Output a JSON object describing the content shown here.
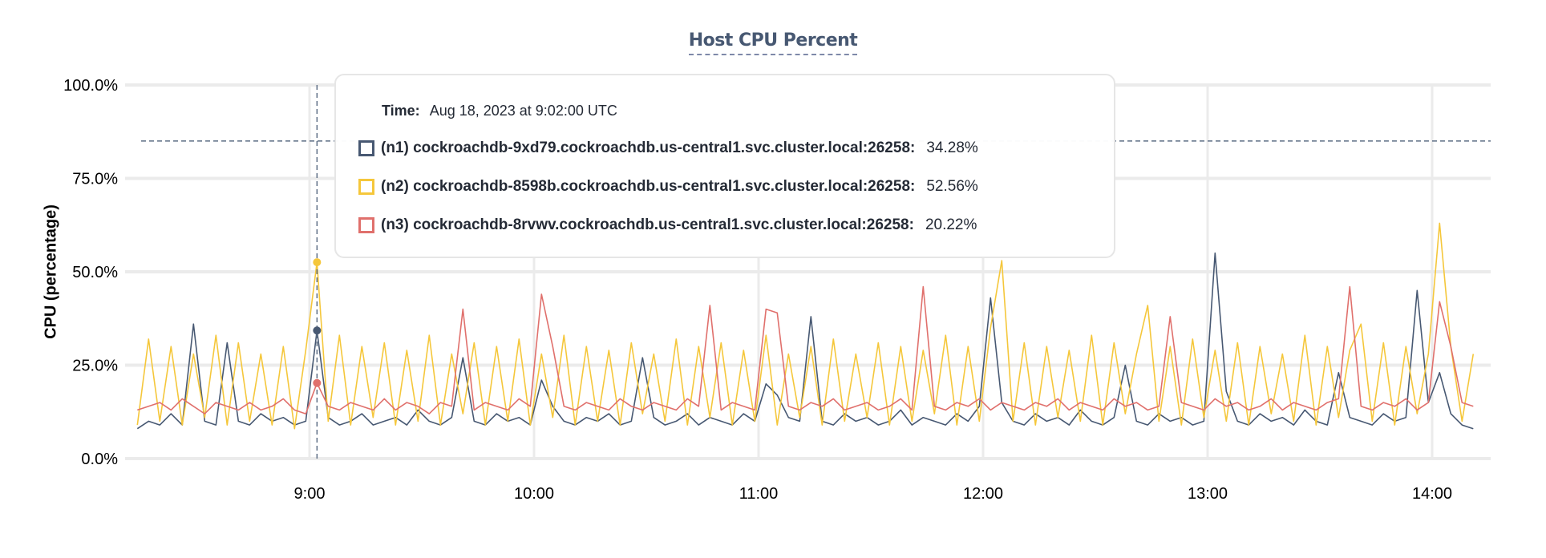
{
  "chart_data": {
    "type": "line",
    "title": "Host CPU Percent",
    "ylabel": "CPU (percentage)",
    "xlabel": "",
    "ylim": [
      0,
      100
    ],
    "yticks": [
      "0.0%",
      "25.0%",
      "50.0%",
      "75.0%",
      "100.0%"
    ],
    "ytick_values": [
      0,
      25,
      50,
      75,
      100
    ],
    "xticks": [
      "9:00",
      "10:00",
      "11:00",
      "12:00",
      "13:00",
      "14:00"
    ],
    "xlim": [
      "08:14",
      "14:11"
    ],
    "grid": true,
    "threshold_line": 85,
    "x": [
      "08:14",
      "08:17",
      "08:20",
      "08:23",
      "08:26",
      "08:29",
      "08:32",
      "08:35",
      "08:38",
      "08:41",
      "08:44",
      "08:47",
      "08:50",
      "08:53",
      "08:56",
      "08:59",
      "09:02",
      "09:05",
      "09:08",
      "09:11",
      "09:14",
      "09:17",
      "09:20",
      "09:23",
      "09:26",
      "09:29",
      "09:32",
      "09:35",
      "09:38",
      "09:41",
      "09:44",
      "09:47",
      "09:50",
      "09:53",
      "09:56",
      "09:59",
      "10:02",
      "10:05",
      "10:08",
      "10:11",
      "10:14",
      "10:17",
      "10:20",
      "10:23",
      "10:26",
      "10:29",
      "10:32",
      "10:35",
      "10:38",
      "10:41",
      "10:44",
      "10:47",
      "10:50",
      "10:53",
      "10:56",
      "10:59",
      "11:02",
      "11:05",
      "11:08",
      "11:11",
      "11:14",
      "11:17",
      "11:20",
      "11:23",
      "11:26",
      "11:29",
      "11:32",
      "11:35",
      "11:38",
      "11:41",
      "11:44",
      "11:47",
      "11:50",
      "11:53",
      "11:56",
      "11:59",
      "12:02",
      "12:05",
      "12:08",
      "12:11",
      "12:14",
      "12:17",
      "12:20",
      "12:23",
      "12:26",
      "12:29",
      "12:32",
      "12:35",
      "12:38",
      "12:41",
      "12:44",
      "12:47",
      "12:50",
      "12:53",
      "12:56",
      "12:59",
      "13:02",
      "13:05",
      "13:08",
      "13:11",
      "13:14",
      "13:17",
      "13:20",
      "13:23",
      "13:26",
      "13:29",
      "13:32",
      "13:35",
      "13:38",
      "13:41",
      "13:44",
      "13:47",
      "13:50",
      "13:53",
      "13:56",
      "13:59",
      "14:02",
      "14:05",
      "14:08",
      "14:11"
    ],
    "series": [
      {
        "name": "(n1) cockroachdb-9xd79.cockroachdb.us-central1.svc.cluster.local:26258",
        "color": "#475872",
        "values": [
          8,
          10,
          9,
          12,
          9,
          36,
          10,
          9,
          31,
          10,
          9,
          12,
          10,
          11,
          9,
          10,
          34.28,
          11,
          9,
          10,
          12,
          9,
          10,
          11,
          9,
          13,
          10,
          9,
          11,
          27,
          10,
          9,
          12,
          10,
          11,
          9,
          21,
          14,
          10,
          9,
          11,
          10,
          12,
          9,
          10,
          27,
          11,
          9,
          10,
          12,
          9,
          11,
          10,
          9,
          12,
          10,
          20,
          17,
          11,
          10,
          38,
          10,
          9,
          12,
          10,
          11,
          9,
          10,
          13,
          9,
          11,
          10,
          9,
          12,
          10,
          14,
          43,
          15,
          10,
          9,
          12,
          10,
          11,
          9,
          13,
          10,
          9,
          11,
          25,
          10,
          9,
          12,
          10,
          11,
          9,
          10,
          55,
          18,
          10,
          9,
          12,
          10,
          11,
          9,
          13,
          10,
          9,
          23,
          11,
          10,
          9,
          12,
          10,
          11,
          45,
          15,
          23,
          12,
          9,
          8
        ]
      },
      {
        "name": "(n2) cockroachdb-8598b.cockroachdb.us-central1.svc.cluster.local:26258",
        "color": "#f5c73b",
        "values": [
          9,
          32,
          10,
          30,
          9,
          28,
          11,
          33,
          9,
          31,
          10,
          28,
          9,
          30,
          8,
          29,
          52.56,
          10,
          33,
          9,
          30,
          11,
          31,
          9,
          29,
          10,
          33,
          9,
          28,
          12,
          31,
          9,
          30,
          10,
          32,
          9,
          28,
          11,
          33,
          9,
          30,
          10,
          29,
          9,
          31,
          12,
          28,
          10,
          32,
          9,
          30,
          11,
          31,
          9,
          29,
          10,
          33,
          9,
          28,
          11,
          30,
          9,
          32,
          10,
          28,
          11,
          31,
          9,
          30,
          10,
          29,
          12,
          33,
          9,
          30,
          10,
          35,
          53,
          10,
          31,
          9,
          30,
          11,
          29,
          10,
          33,
          9,
          31,
          12,
          28,
          41,
          10,
          30,
          9,
          32,
          11,
          29,
          10,
          31,
          9,
          30,
          12,
          28,
          10,
          33,
          9,
          30,
          11,
          29,
          36,
          10,
          31,
          9,
          30,
          12,
          28,
          63,
          30,
          10,
          28
        ]
      },
      {
        "name": "(n3) cockroachdb-8rvwv.cockroachdb.us-central1.svc.cluster.local:26258",
        "color": "#e0706c",
        "values": [
          13,
          14,
          15,
          13,
          16,
          14,
          12,
          15,
          14,
          13,
          15,
          13,
          14,
          16,
          13,
          12,
          20.22,
          14,
          13,
          15,
          14,
          13,
          16,
          13,
          15,
          14,
          12,
          15,
          14,
          40,
          13,
          15,
          14,
          13,
          16,
          14,
          44,
          30,
          14,
          13,
          15,
          14,
          13,
          16,
          14,
          13,
          15,
          14,
          13,
          16,
          14,
          41,
          13,
          15,
          14,
          13,
          40,
          39,
          14,
          13,
          15,
          14,
          16,
          13,
          14,
          15,
          13,
          14,
          16,
          13,
          46,
          14,
          13,
          15,
          14,
          16,
          13,
          15,
          14,
          13,
          15,
          14,
          16,
          13,
          15,
          14,
          13,
          16,
          14,
          15,
          13,
          14,
          38,
          15,
          14,
          13,
          16,
          14,
          15,
          13,
          14,
          16,
          13,
          15,
          14,
          13,
          15,
          16,
          46,
          14,
          13,
          15,
          14,
          16,
          13,
          15,
          42,
          30,
          15,
          14
        ]
      }
    ],
    "tooltip": {
      "time_label": "Time:",
      "time_value": "Aug 18, 2023 at 9:02:00 UTC",
      "hover_x": "09:02",
      "rows": [
        {
          "name": "(n1) cockroachdb-9xd79.cockroachdb.us-central1.svc.cluster.local:26258:",
          "value": "34.28%",
          "color": "#475872"
        },
        {
          "name": "(n2) cockroachdb-8598b.cockroachdb.us-central1.svc.cluster.local:26258:",
          "value": "52.56%",
          "color": "#f5c73b"
        },
        {
          "name": "(n3) cockroachdb-8rvwv.cockroachdb.us-central1.svc.cluster.local:26258:",
          "value": "20.22%",
          "color": "#e0706c"
        }
      ]
    }
  }
}
